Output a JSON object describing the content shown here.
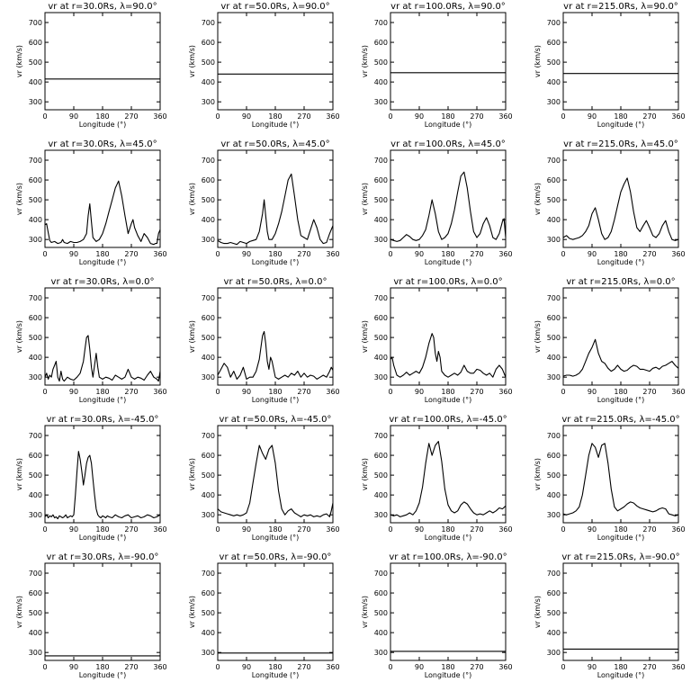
{
  "chart_data": {
    "type": "line",
    "layout": {
      "rows": 5,
      "cols": 4
    },
    "x_label": "Longitude (°)",
    "y_label": "vr (km/s)",
    "x_ticks": [
      "0",
      "90",
      "180",
      "270",
      "360"
    ],
    "y_ticks": [
      "300",
      "400",
      "500",
      "600",
      "700"
    ],
    "xlim": [
      0,
      360
    ],
    "ylim": [
      260,
      750
    ],
    "grid": false,
    "panels": [
      {
        "title": "vr at r=30.0Rs, λ=90.0°",
        "constant": 415
      },
      {
        "title": "vr at r=50.0Rs, λ=90.0°",
        "constant": 440
      },
      {
        "title": "vr at r=100.0Rs, λ=90.0°",
        "constant": 447
      },
      {
        "title": "vr at r=215.0Rs, λ=90.0°",
        "constant": 443
      },
      {
        "title": "vr at r=30.0Rs, λ=45.0°",
        "x": [
          0,
          5,
          10,
          15,
          20,
          30,
          40,
          50,
          55,
          60,
          70,
          80,
          90,
          100,
          110,
          120,
          130,
          135,
          140,
          145,
          150,
          160,
          170,
          180,
          190,
          200,
          210,
          220,
          230,
          240,
          250,
          260,
          270,
          275,
          280,
          290,
          300,
          310,
          320,
          330,
          340,
          345,
          350,
          355,
          360
        ],
        "y": [
          375,
          380,
          335,
          295,
          285,
          290,
          280,
          285,
          300,
          285,
          280,
          290,
          285,
          285,
          290,
          300,
          330,
          420,
          480,
          390,
          310,
          290,
          300,
          330,
          380,
          440,
          500,
          560,
          595,
          520,
          420,
          330,
          380,
          400,
          360,
          320,
          290,
          330,
          310,
          280,
          275,
          280,
          280,
          330,
          350
        ]
      },
      {
        "title": "vr at r=50.0Rs, λ=45.0°",
        "x": [
          0,
          10,
          20,
          30,
          40,
          50,
          60,
          70,
          80,
          90,
          100,
          110,
          120,
          130,
          140,
          145,
          150,
          155,
          160,
          170,
          180,
          190,
          200,
          210,
          220,
          230,
          240,
          250,
          260,
          270,
          280,
          290,
          300,
          310,
          320,
          330,
          340,
          350,
          360
        ],
        "y": [
          295,
          285,
          280,
          280,
          285,
          280,
          275,
          290,
          285,
          280,
          290,
          295,
          300,
          340,
          430,
          500,
          420,
          340,
          300,
          300,
          330,
          380,
          440,
          520,
          600,
          630,
          520,
          400,
          320,
          310,
          300,
          350,
          400,
          360,
          300,
          280,
          285,
          330,
          370
        ]
      },
      {
        "title": "vr at r=100.0Rs, λ=45.0°",
        "x": [
          0,
          10,
          20,
          30,
          40,
          50,
          60,
          70,
          80,
          90,
          100,
          110,
          120,
          130,
          140,
          150,
          160,
          170,
          180,
          190,
          200,
          210,
          220,
          230,
          240,
          250,
          260,
          270,
          280,
          290,
          300,
          310,
          320,
          330,
          340,
          350,
          355,
          360
        ],
        "y": [
          300,
          295,
          290,
          295,
          310,
          325,
          315,
          300,
          295,
          300,
          320,
          350,
          420,
          500,
          430,
          340,
          300,
          310,
          330,
          380,
          450,
          540,
          620,
          640,
          560,
          440,
          340,
          310,
          330,
          380,
          410,
          370,
          310,
          300,
          330,
          390,
          405,
          310
        ]
      },
      {
        "title": "vr at r=215.0Rs, λ=45.0°",
        "x": [
          0,
          10,
          20,
          30,
          40,
          50,
          60,
          70,
          80,
          90,
          100,
          110,
          120,
          130,
          140,
          150,
          160,
          170,
          180,
          190,
          200,
          210,
          220,
          230,
          240,
          250,
          260,
          270,
          280,
          290,
          300,
          310,
          320,
          330,
          340,
          350,
          360
        ],
        "y": [
          310,
          320,
          305,
          300,
          305,
          310,
          320,
          340,
          370,
          430,
          460,
          400,
          330,
          300,
          310,
          340,
          400,
          470,
          540,
          580,
          610,
          540,
          440,
          360,
          340,
          370,
          395,
          360,
          320,
          310,
          330,
          370,
          395,
          340,
          300,
          295,
          300
        ]
      },
      {
        "title": "vr at r=30.0Rs, λ=0.0°",
        "x": [
          0,
          5,
          10,
          15,
          20,
          25,
          30,
          35,
          40,
          45,
          50,
          55,
          60,
          70,
          80,
          90,
          100,
          110,
          120,
          125,
          130,
          135,
          140,
          145,
          150,
          155,
          160,
          165,
          170,
          180,
          190,
          200,
          210,
          220,
          230,
          240,
          250,
          260,
          270,
          280,
          290,
          300,
          310,
          320,
          330,
          340,
          350,
          355,
          360
        ],
        "y": [
          300,
          320,
          290,
          310,
          300,
          340,
          360,
          380,
          300,
          280,
          330,
          290,
          280,
          300,
          290,
          285,
          300,
          320,
          380,
          440,
          500,
          510,
          440,
          350,
          300,
          360,
          420,
          350,
          300,
          290,
          300,
          295,
          285,
          310,
          300,
          290,
          300,
          340,
          300,
          290,
          300,
          295,
          285,
          310,
          330,
          300,
          290,
          280,
          330
        ]
      },
      {
        "title": "vr at r=50.0Rs, λ=0.0°",
        "x": [
          0,
          10,
          20,
          30,
          40,
          50,
          60,
          70,
          80,
          90,
          100,
          110,
          120,
          130,
          135,
          140,
          145,
          150,
          155,
          160,
          165,
          170,
          180,
          190,
          200,
          210,
          220,
          230,
          240,
          250,
          260,
          270,
          280,
          290,
          300,
          310,
          320,
          330,
          340,
          350,
          355,
          360
        ],
        "y": [
          310,
          340,
          370,
          350,
          300,
          330,
          290,
          310,
          350,
          290,
          300,
          300,
          330,
          390,
          450,
          510,
          530,
          470,
          380,
          340,
          400,
          380,
          300,
          290,
          300,
          310,
          300,
          320,
          310,
          330,
          300,
          320,
          300,
          310,
          305,
          290,
          300,
          310,
          300,
          330,
          350,
          335
        ]
      },
      {
        "title": "vr at r=100.0Rs, λ=0.0°",
        "x": [
          0,
          5,
          10,
          20,
          30,
          40,
          50,
          60,
          70,
          80,
          90,
          100,
          110,
          120,
          130,
          135,
          140,
          145,
          150,
          155,
          160,
          170,
          180,
          190,
          200,
          210,
          220,
          230,
          240,
          250,
          260,
          270,
          280,
          290,
          300,
          310,
          320,
          330,
          340,
          350,
          360
        ],
        "y": [
          390,
          400,
          360,
          310,
          300,
          310,
          325,
          310,
          320,
          330,
          320,
          350,
          400,
          470,
          520,
          500,
          420,
          380,
          430,
          400,
          330,
          310,
          300,
          310,
          320,
          310,
          325,
          360,
          330,
          320,
          320,
          340,
          335,
          320,
          310,
          320,
          300,
          340,
          360,
          340,
          300
        ]
      },
      {
        "title": "vr at r=215.0Rs, λ=0.0°",
        "x": [
          0,
          10,
          20,
          30,
          40,
          50,
          60,
          70,
          80,
          90,
          100,
          110,
          120,
          130,
          140,
          150,
          160,
          170,
          180,
          190,
          200,
          210,
          220,
          230,
          240,
          250,
          260,
          270,
          280,
          290,
          300,
          310,
          320,
          330,
          340,
          350,
          360
        ],
        "y": [
          305,
          310,
          310,
          305,
          310,
          320,
          340,
          380,
          420,
          450,
          490,
          420,
          380,
          370,
          345,
          330,
          340,
          360,
          340,
          330,
          335,
          350,
          360,
          355,
          340,
          340,
          335,
          330,
          345,
          350,
          340,
          355,
          360,
          370,
          380,
          360,
          345
        ]
      },
      {
        "title": "vr at r=30.0Rs, λ=-45.0°",
        "x": [
          0,
          5,
          10,
          15,
          20,
          25,
          30,
          35,
          40,
          45,
          50,
          55,
          60,
          65,
          70,
          75,
          80,
          85,
          90,
          95,
          100,
          105,
          110,
          115,
          120,
          125,
          130,
          135,
          140,
          145,
          150,
          155,
          160,
          165,
          170,
          175,
          180,
          185,
          190,
          195,
          200,
          210,
          220,
          230,
          240,
          250,
          260,
          270,
          280,
          290,
          300,
          310,
          320,
          330,
          340,
          350,
          360
        ],
        "y": [
          290,
          300,
          285,
          295,
          290,
          300,
          285,
          290,
          280,
          295,
          290,
          285,
          290,
          300,
          285,
          290,
          295,
          290,
          300,
          400,
          520,
          620,
          580,
          520,
          450,
          500,
          560,
          590,
          600,
          560,
          480,
          400,
          330,
          300,
          290,
          285,
          295,
          290,
          285,
          295,
          290,
          285,
          300,
          290,
          285,
          295,
          300,
          285,
          290,
          295,
          285,
          290,
          300,
          295,
          285,
          290,
          300
        ]
      },
      {
        "title": "vr at r=50.0Rs, λ=-45.0°",
        "x": [
          0,
          10,
          20,
          30,
          40,
          50,
          60,
          70,
          80,
          90,
          100,
          110,
          120,
          130,
          140,
          150,
          160,
          170,
          180,
          190,
          200,
          210,
          220,
          230,
          240,
          250,
          260,
          270,
          280,
          290,
          300,
          310,
          320,
          330,
          340,
          350,
          355,
          360
        ],
        "y": [
          330,
          315,
          310,
          305,
          300,
          295,
          300,
          295,
          300,
          310,
          360,
          460,
          560,
          650,
          610,
          580,
          630,
          650,
          560,
          420,
          330,
          300,
          320,
          330,
          310,
          300,
          290,
          300,
          295,
          300,
          290,
          295,
          290,
          300,
          305,
          290,
          320,
          360
        ]
      },
      {
        "title": "vr at r=100.0Rs, λ=-45.0°",
        "x": [
          0,
          10,
          20,
          30,
          40,
          50,
          60,
          70,
          80,
          90,
          100,
          110,
          120,
          130,
          140,
          150,
          160,
          170,
          180,
          190,
          200,
          210,
          220,
          230,
          240,
          250,
          260,
          270,
          280,
          290,
          300,
          310,
          320,
          330,
          340,
          350,
          360
        ],
        "y": [
          300,
          295,
          300,
          290,
          295,
          300,
          310,
          300,
          320,
          360,
          440,
          560,
          660,
          600,
          650,
          670,
          570,
          430,
          350,
          320,
          310,
          320,
          350,
          365,
          355,
          330,
          310,
          300,
          305,
          300,
          310,
          320,
          310,
          320,
          335,
          330,
          345
        ]
      },
      {
        "title": "vr at r=215.0Rs, λ=-45.0°",
        "x": [
          0,
          10,
          20,
          30,
          40,
          50,
          60,
          70,
          80,
          90,
          100,
          110,
          120,
          130,
          140,
          150,
          160,
          170,
          180,
          190,
          200,
          210,
          220,
          230,
          240,
          250,
          260,
          270,
          280,
          290,
          300,
          310,
          320,
          330,
          340,
          350,
          360
        ],
        "y": [
          305,
          300,
          305,
          310,
          320,
          340,
          400,
          500,
          600,
          660,
          640,
          590,
          650,
          660,
          560,
          430,
          340,
          320,
          330,
          340,
          355,
          365,
          360,
          345,
          335,
          330,
          325,
          320,
          315,
          320,
          330,
          335,
          330,
          305,
          300,
          295,
          300
        ]
      },
      {
        "title": "vr at r=30.0Rs, λ=-90.0°",
        "constant": 283
      },
      {
        "title": "vr at r=50.0Rs, λ=-90.0°",
        "constant": 297
      },
      {
        "title": "vr at r=100.0Rs, λ=-90.0°",
        "constant": 306
      },
      {
        "title": "vr at r=215.0Rs, λ=-90.0°",
        "constant": 317
      }
    ]
  }
}
